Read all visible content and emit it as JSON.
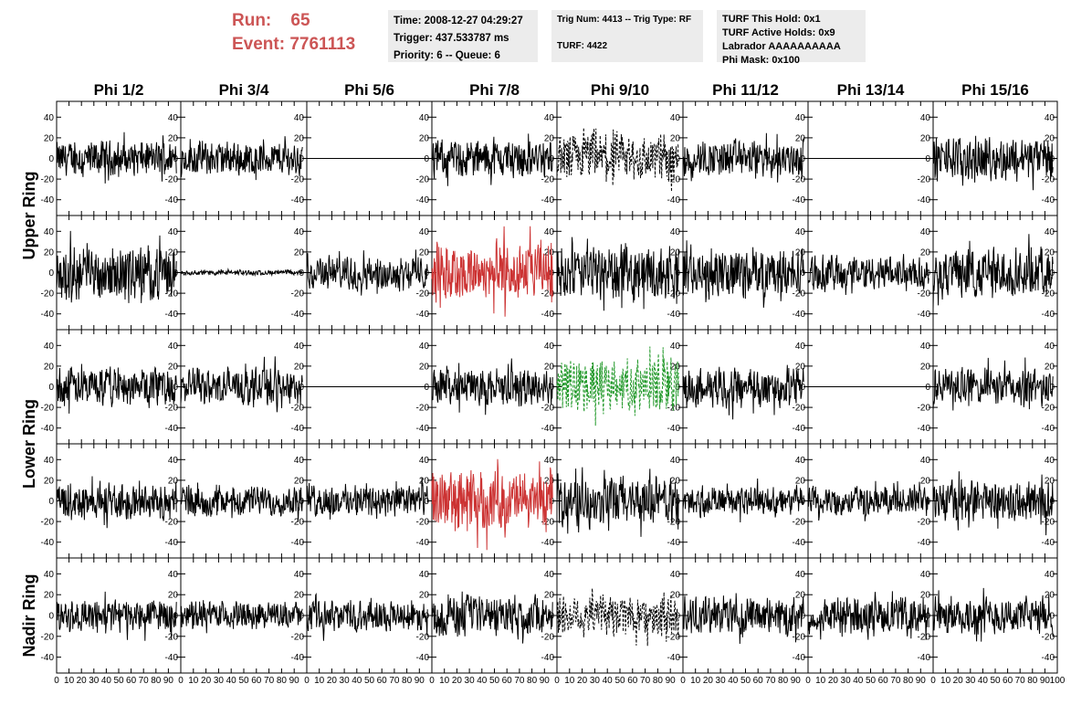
{
  "header": {
    "run_label": "Run:",
    "run_value": "65",
    "event_label": "Event:",
    "event_value": "7761113"
  },
  "info_time": {
    "time": "Time: 2008-12-27 04:29:27",
    "trigger": "Trigger: 437.533787 ms",
    "priority": "Priority: 6 -- Queue: 6"
  },
  "info_trig": {
    "trig": "Trig Num: 4413 -- Trig Type: RF",
    "turf": "TURF: 4422"
  },
  "info_turf": {
    "this_hold": "TURF This Hold: 0x1",
    "active_holds": "TURF Active Holds: 0x9",
    "labrador": "Labrador AAAAAAAAAA",
    "phi_mask": "Phi Mask: 0x100"
  },
  "colors": {
    "normal": "#000000",
    "triggered": "#cc3333",
    "masked": "#22992a",
    "header": "#cc5555",
    "info_bg": "#ececec"
  },
  "chart_data": {
    "type": "line",
    "columns": [
      "Phi 1/2",
      "Phi 3/4",
      "Phi 5/6",
      "Phi 7/8",
      "Phi 9/10",
      "Phi 11/12",
      "Phi 13/14",
      "Phi 15/16"
    ],
    "rows": [
      "Upper Ring",
      "Upper Ring",
      "Lower Ring",
      "Lower Ring",
      "Nadir Ring"
    ],
    "row_labels": [
      {
        "label": "Upper Ring",
        "rows": [
          0,
          1
        ]
      },
      {
        "label": "Lower Ring",
        "rows": [
          2,
          3
        ]
      },
      {
        "label": "Nadir Ring",
        "rows": [
          4
        ]
      }
    ],
    "xlim": [
      0,
      100
    ],
    "x_ticks": [
      0,
      10,
      20,
      30,
      40,
      50,
      60,
      70,
      80,
      90
    ],
    "x_tick_labels": [
      "0",
      "10",
      "20",
      "30",
      "40",
      "50",
      "60",
      "70",
      "80",
      "90"
    ],
    "x_last_label": "100",
    "ylim": [
      -50,
      50
    ],
    "y_ticks": [
      -40,
      -20,
      0,
      20,
      40
    ],
    "y_tick_labels": [
      "-40",
      "-20",
      "0",
      "20",
      "40"
    ],
    "samples": 260,
    "panels": [
      [
        {
          "amp": 14,
          "style": "normal"
        },
        {
          "amp": 14,
          "style": "normal"
        },
        {
          "amp": 0,
          "style": "flat"
        },
        {
          "amp": 15,
          "style": "normal"
        },
        {
          "amp": 20,
          "style": "dotted"
        },
        {
          "amp": 15,
          "style": "normal"
        },
        {
          "amp": 0,
          "style": "flat"
        },
        {
          "amp": 17,
          "style": "normal"
        }
      ],
      [
        {
          "amp": 22,
          "style": "normal"
        },
        {
          "amp": 2,
          "style": "normal"
        },
        {
          "amp": 14,
          "style": "normal"
        },
        {
          "amp": 24,
          "style": "triggered"
        },
        {
          "amp": 22,
          "style": "normal"
        },
        {
          "amp": 20,
          "style": "normal"
        },
        {
          "amp": 14,
          "style": "normal"
        },
        {
          "amp": 20,
          "style": "normal"
        }
      ],
      [
        {
          "amp": 16,
          "style": "normal"
        },
        {
          "amp": 15,
          "style": "normal"
        },
        {
          "amp": 0,
          "style": "flat"
        },
        {
          "amp": 15,
          "style": "normal"
        },
        {
          "amp": 22,
          "style": "masked"
        },
        {
          "amp": 16,
          "style": "normal"
        },
        {
          "amp": 0,
          "style": "flat"
        },
        {
          "amp": 15,
          "style": "normal"
        }
      ],
      [
        {
          "amp": 15,
          "style": "normal"
        },
        {
          "amp": 12,
          "style": "normal"
        },
        {
          "amp": 13,
          "style": "normal"
        },
        {
          "amp": 24,
          "style": "triggered"
        },
        {
          "amp": 20,
          "style": "normal"
        },
        {
          "amp": 12,
          "style": "normal"
        },
        {
          "amp": 12,
          "style": "normal"
        },
        {
          "amp": 17,
          "style": "normal"
        }
      ],
      [
        {
          "amp": 13,
          "style": "normal"
        },
        {
          "amp": 11,
          "style": "normal"
        },
        {
          "amp": 12,
          "style": "normal"
        },
        {
          "amp": 16,
          "style": "normal"
        },
        {
          "amp": 18,
          "style": "dotted"
        },
        {
          "amp": 15,
          "style": "normal"
        },
        {
          "amp": 15,
          "style": "normal"
        },
        {
          "amp": 15,
          "style": "normal"
        }
      ]
    ]
  }
}
